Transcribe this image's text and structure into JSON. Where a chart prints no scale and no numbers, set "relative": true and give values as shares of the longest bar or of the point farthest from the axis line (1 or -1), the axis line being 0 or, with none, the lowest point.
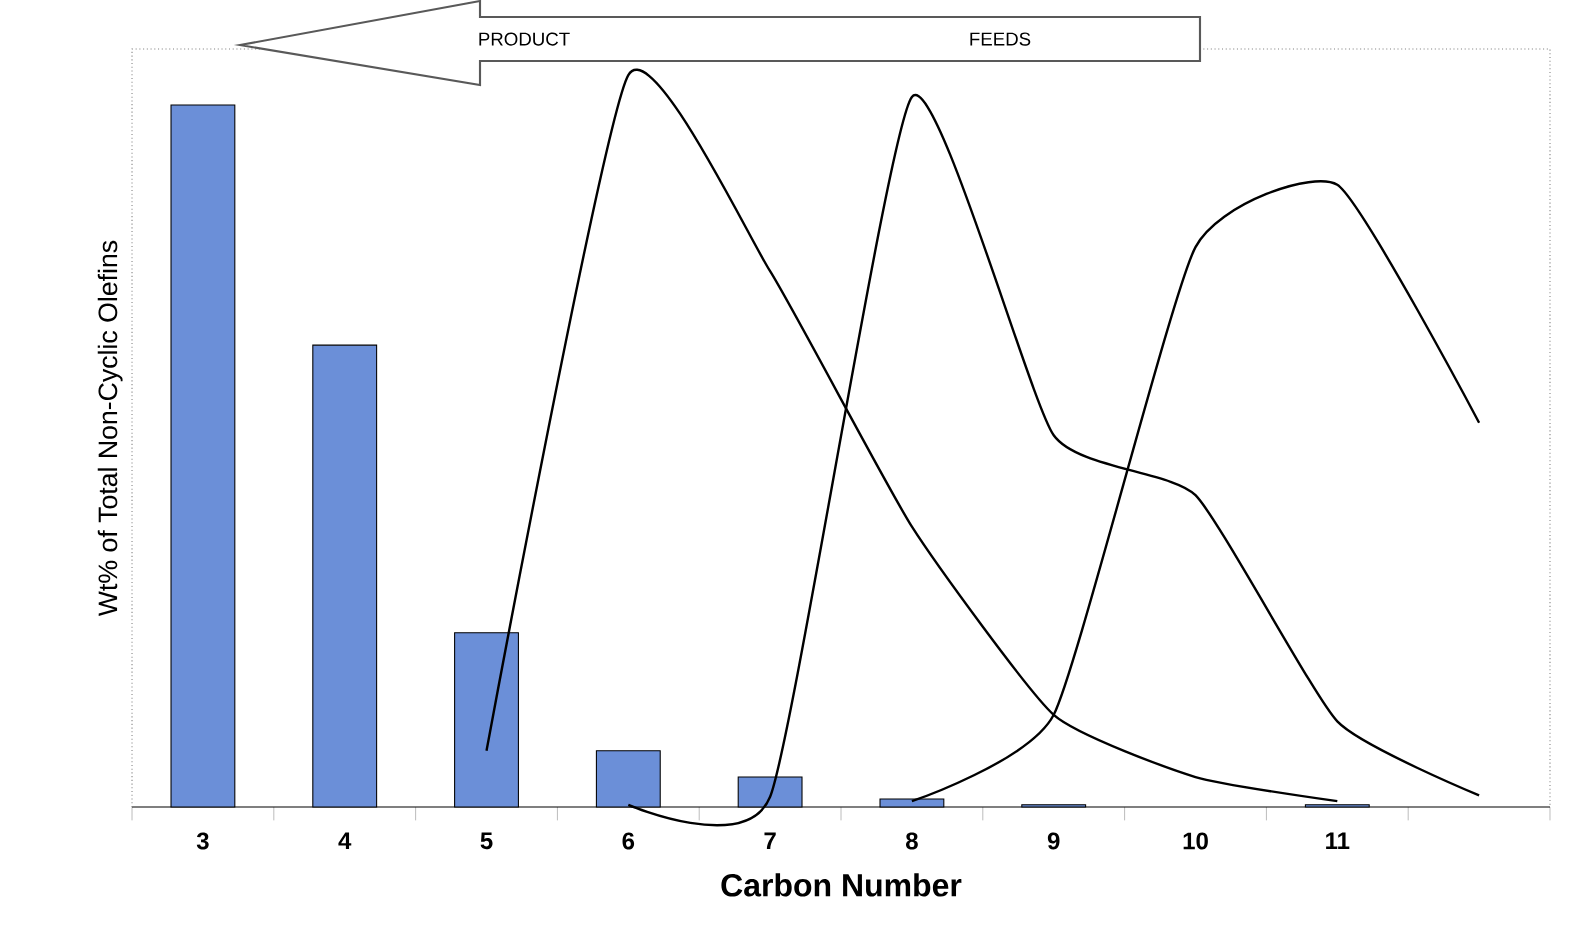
{
  "chart_data": {
    "type": "bar",
    "relative": true,
    "xlabel": "Carbon Number",
    "ylabel": "Wt% of Total Non-Cyclic Olefins",
    "categories": [
      "3",
      "4",
      "5",
      "6",
      "7",
      "8",
      "9",
      "10",
      "11",
      null
    ],
    "marker": "none",
    "annotations": [
      "PRODUCT",
      "FEEDS"
    ],
    "series": [
      {
        "color": "#6b8fd8",
        "values": [
          0.959,
          0.631,
          0.238,
          0.077,
          0.041,
          0.011,
          0.003,
          null,
          0.003,
          null
        ]
      },
      {
        "type": "line",
        "color": "#000000",
        "values": [
          null,
          null,
          0.077,
          1.0,
          0.732,
          0.383,
          0.126,
          0.041,
          0.008,
          null
        ]
      },
      {
        "type": "line",
        "color": "#000000",
        "values": [
          null,
          null,
          null,
          0.003,
          0.014,
          0.97,
          0.508,
          0.426,
          0.117,
          0.016
        ]
      },
      {
        "type": "line",
        "color": "#000000",
        "values": [
          null,
          null,
          null,
          null,
          null,
          0.008,
          0.126,
          0.765,
          0.85,
          0.525
        ]
      }
    ]
  }
}
